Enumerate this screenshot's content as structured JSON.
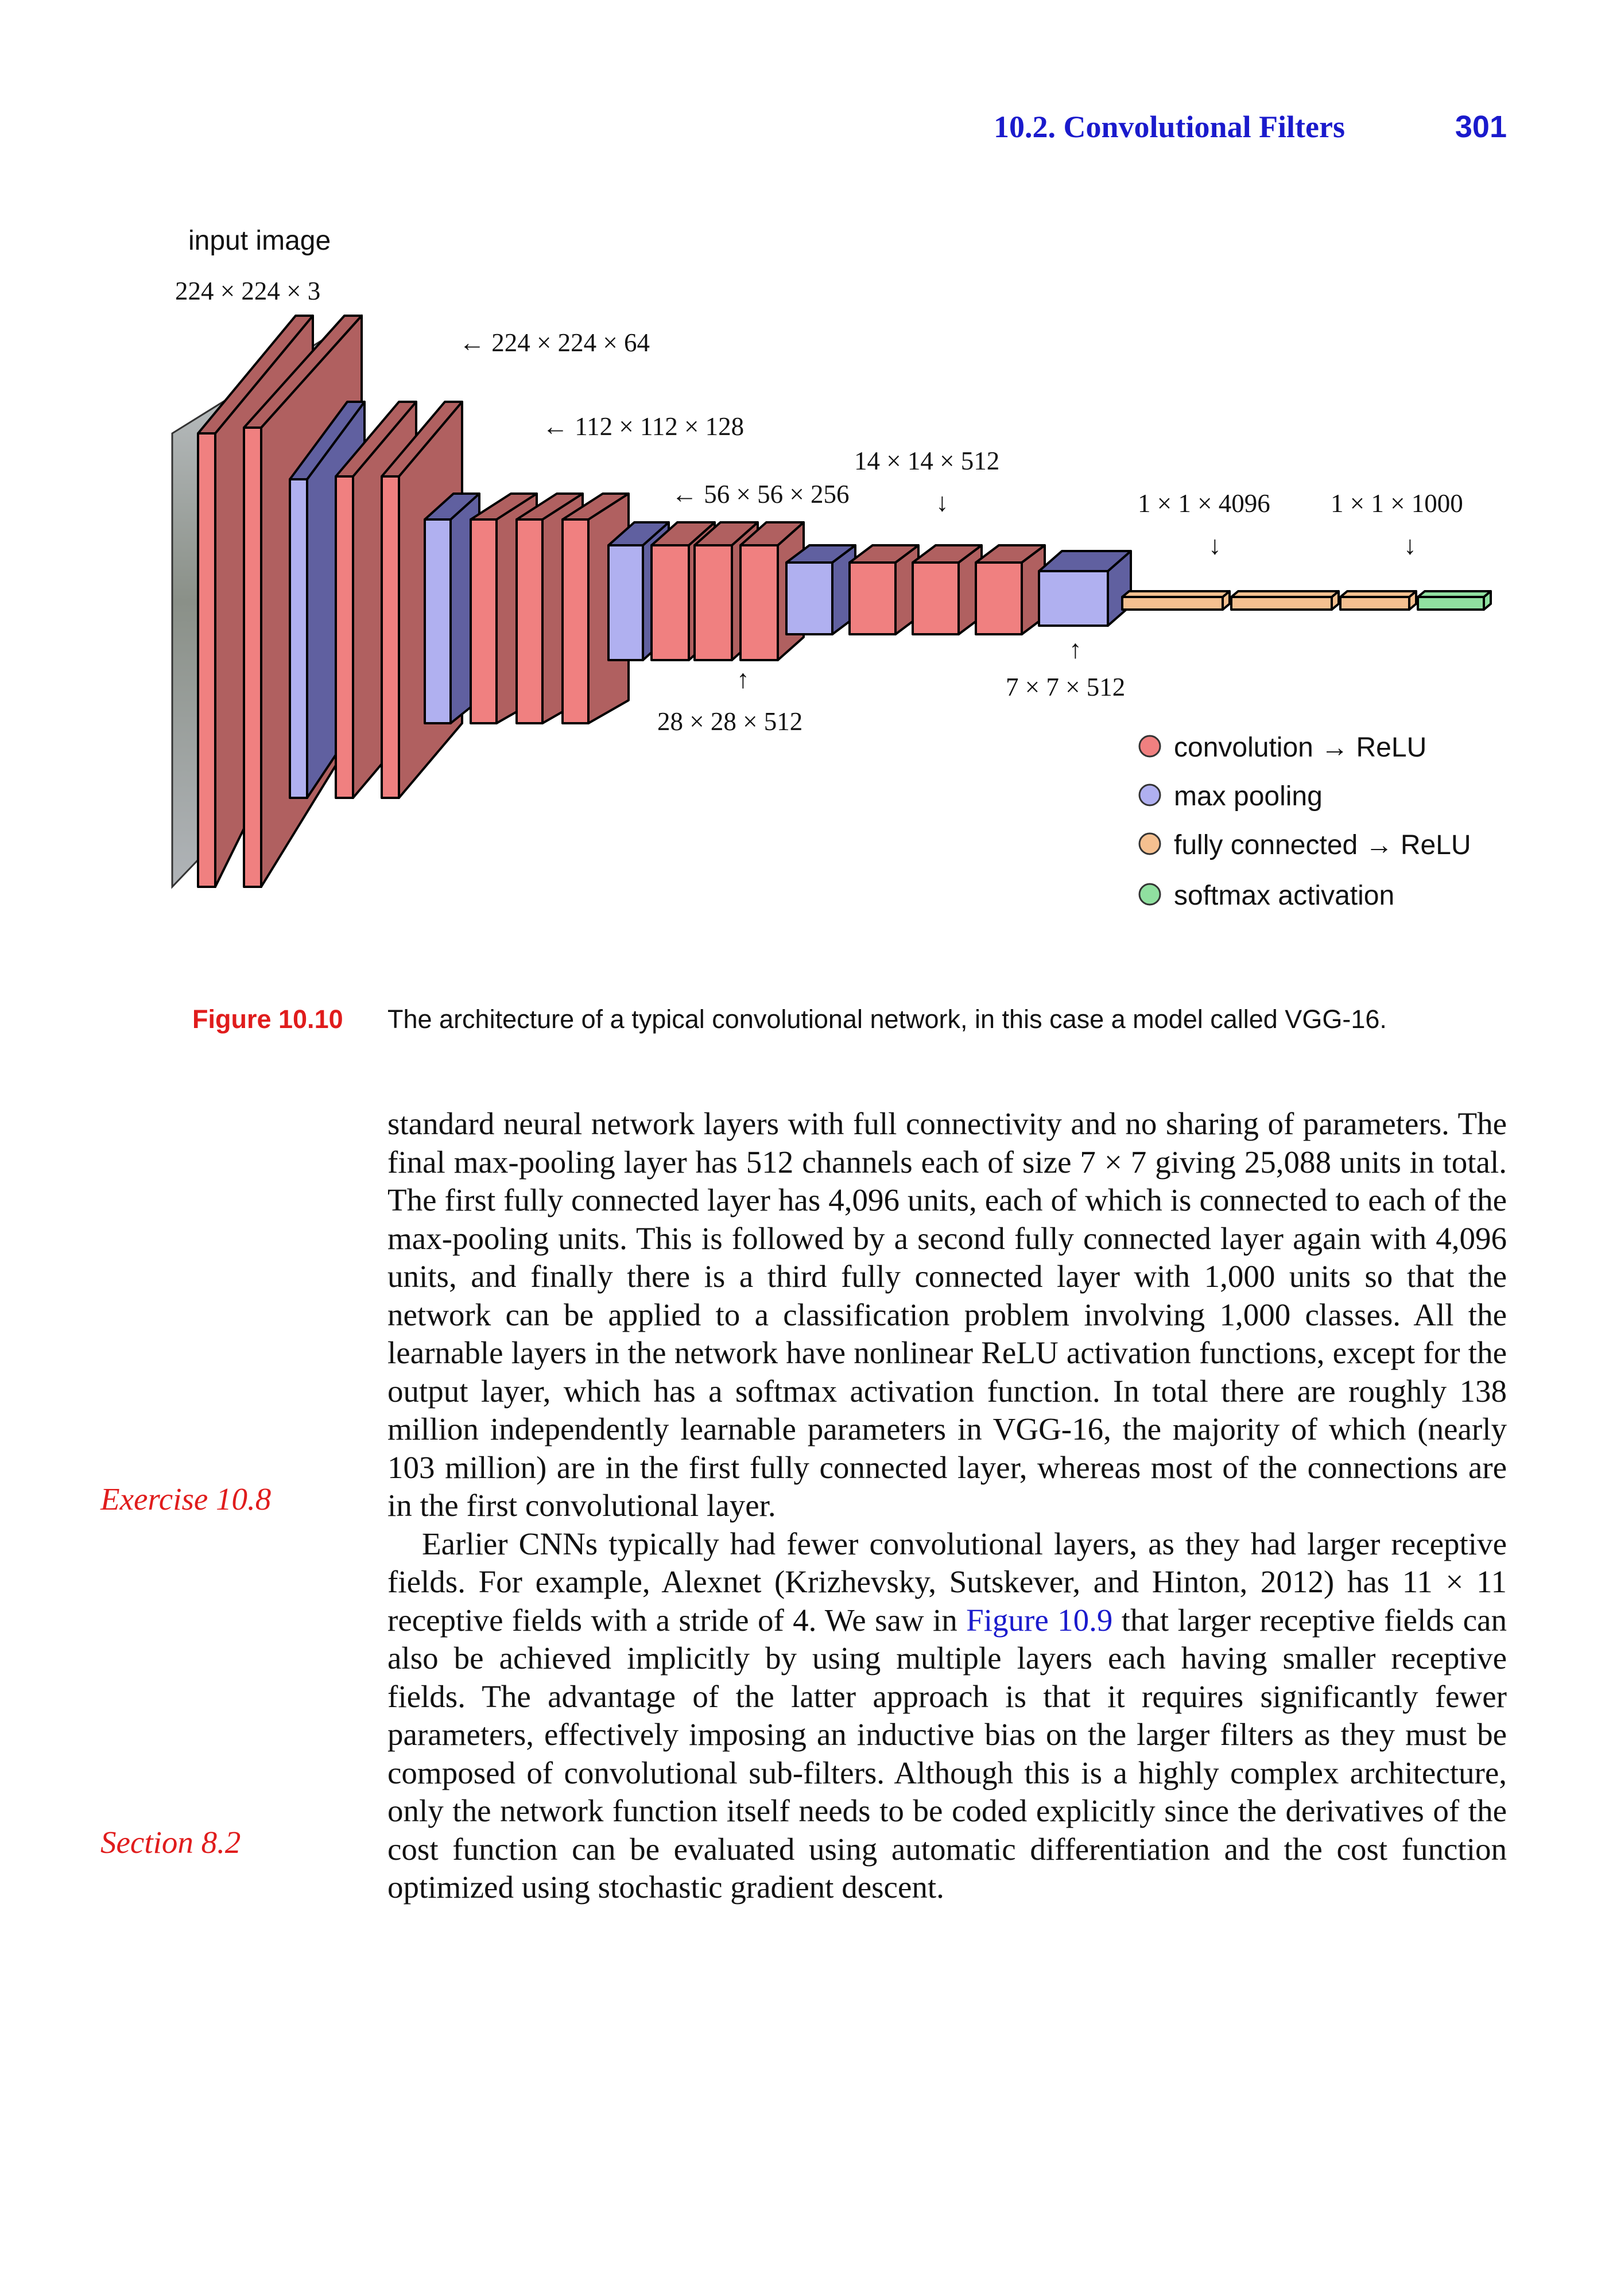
{
  "header": {
    "section_title": "10.2. Convolutional Filters",
    "page_number": "301"
  },
  "figure": {
    "input_label": "input image",
    "labels": {
      "input_dim": "224 × 224 × 3",
      "block1": "← 224 × 224 × 64",
      "block2": "← 112 × 112 × 128",
      "block3": "← 56 × 56 × 256",
      "block4": "28 × 28 × 512",
      "block5": "14 × 14 × 512",
      "pool5": "7 × 7 × 512",
      "fc": "1 × 1 × 4096",
      "softmax": "1 × 1 × 1000",
      "arrow_up": "↑",
      "arrow_down": "↓"
    },
    "legend": [
      {
        "label": "convolution → ReLU",
        "color": "#f08080"
      },
      {
        "label": "max pooling",
        "color": "#b0b0f0"
      },
      {
        "label": "fully connected → ReLU",
        "color": "#f5c090"
      },
      {
        "label": "softmax activation",
        "color": "#90e0a0"
      }
    ],
    "colors": {
      "conv_front": "#f08080",
      "conv_side": "#b06060",
      "pool_front": "#b0b0f0",
      "pool_side": "#6060a0",
      "fc": "#f5c090",
      "softmax": "#90e0a0"
    }
  },
  "caption": {
    "number": "Figure 10.10",
    "text": "The architecture of a typical convolutional network, in this case a model called VGG-16."
  },
  "body": {
    "p1": "standard neural network layers with full connectivity and no sharing of parameters. The final max-pooling layer has 512 channels each of size 7 × 7 giving 25,088 units in total. The first fully connected layer has 4,096 units, each of which is connected to each of the max-pooling units. This is followed by a second fully connected layer again with 4,096 units, and finally there is a third fully connected layer with 1,000 units so that the network can be applied to a classification problem involving 1,000 classes. All the learnable layers in the network have nonlinear ReLU activation functions, except for the output layer, which has a softmax activation function. In total there are roughly 138 million independently learnable parameters in VGG-16, the majority of which (nearly 103 million) are in the first fully connected layer, whereas most of the connections are in the first convolutional layer.",
    "p2_a": "Earlier CNNs typically had fewer convolutional layers, as they had larger receptive fields. For example, Alexnet (Krizhevsky, Sutskever, and Hinton, 2012) has 11 × 11 receptive fields with a stride of 4. We saw in ",
    "p2_link": "Figure 10.9",
    "p2_b": " that larger receptive fields can also be achieved implicitly by using multiple layers each having smaller receptive fields. The advantage of the latter approach is that it requires significantly fewer parameters, effectively imposing an inductive bias on the larger filters as they must be composed of convolutional sub-filters. Although this is a highly complex architecture, only the network function itself needs to be coded explicitly since the derivatives of the cost function can be evaluated using automatic differentiation and the cost function optimized using stochastic gradient descent."
  },
  "margin_notes": {
    "exercise": "Exercise 10.8",
    "section": "Section 8.2"
  }
}
